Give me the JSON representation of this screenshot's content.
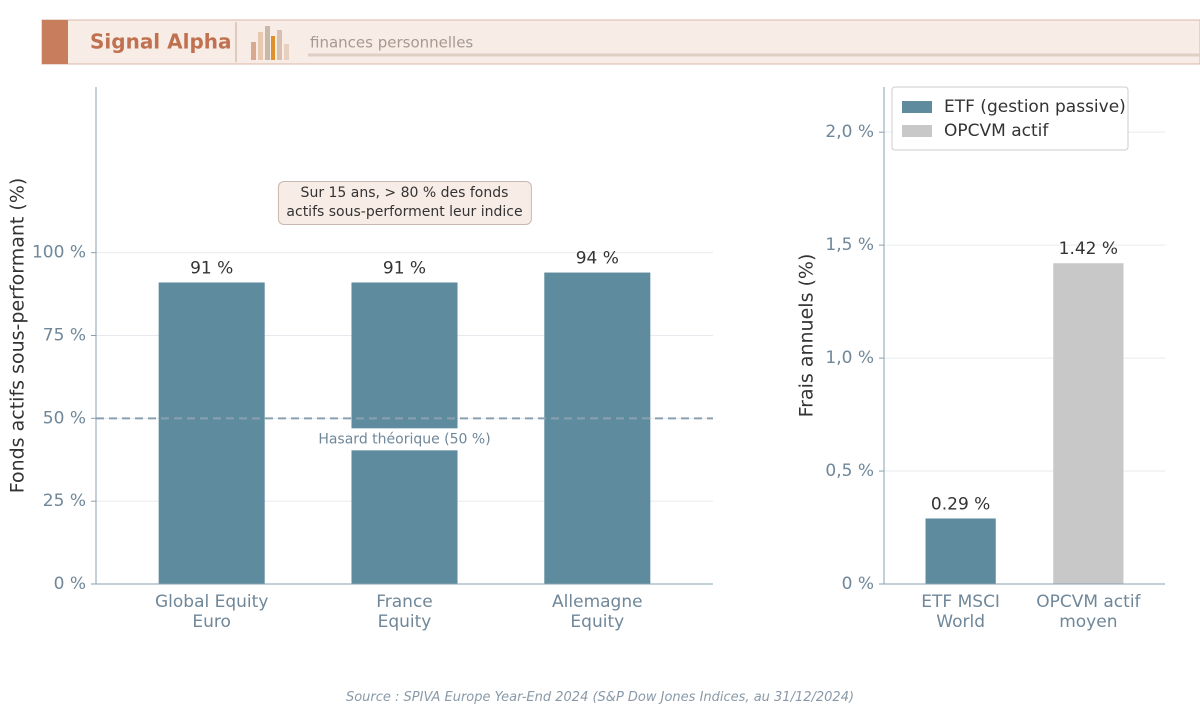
{
  "header": {
    "title": "Signal Alpha",
    "subtitle": "finances personnelles"
  },
  "chart_data": [
    {
      "type": "bar",
      "ylabel": "Fonds actifs sous-performant (%)",
      "categories": [
        "Global Equity\nEuro",
        "France\nEquity",
        "Allemagne\nEquity"
      ],
      "values": [
        91,
        91,
        94
      ],
      "value_labels": [
        "91 %",
        "91 %",
        "94 %"
      ],
      "color": "#5e8c9e",
      "ylim": [
        0,
        150
      ],
      "yticks": [
        {
          "value": 0,
          "label": "0 %"
        },
        {
          "value": 25,
          "label": "25 %"
        },
        {
          "value": 50,
          "label": "50 %"
        },
        {
          "value": 75,
          "label": "75 %"
        },
        {
          "value": 100,
          "label": "100 %"
        }
      ],
      "grid": true,
      "reference_line": {
        "value": 50,
        "label": "Hasard théorique (50 %)"
      },
      "annotation": "Sur 15 ans, > 80 % des fonds\nactifs sous-performent leur indice"
    },
    {
      "type": "bar",
      "ylabel": "Frais annuels (%)",
      "categories": [
        "ETF MSCI\nWorld",
        "OPCVM actif\nmoyen"
      ],
      "series": [
        {
          "name": "ETF (gestion passive)",
          "color": "#5e8c9e",
          "values": [
            0.29,
            null
          ],
          "value_labels": [
            "0.29 %",
            null
          ]
        },
        {
          "name": "OPCVM actif",
          "color": "#c8c8c8",
          "values": [
            null,
            1.42
          ],
          "value_labels": [
            null,
            "1.42 %"
          ]
        }
      ],
      "ylim": [
        0,
        2.2
      ],
      "yticks": [
        {
          "value": 0,
          "label": "0 %"
        },
        {
          "value": 0.5,
          "label": "0,5 %"
        },
        {
          "value": 1.0,
          "label": "1,0 %"
        },
        {
          "value": 1.5,
          "label": "1,5 %"
        },
        {
          "value": 2.0,
          "label": "2,0 %"
        }
      ],
      "grid": true,
      "legend": "upper left"
    }
  ],
  "source": "Source : SPIVA Europe Year-End 2024 (S&P Dow Jones Indices, au 31/12/2024)"
}
